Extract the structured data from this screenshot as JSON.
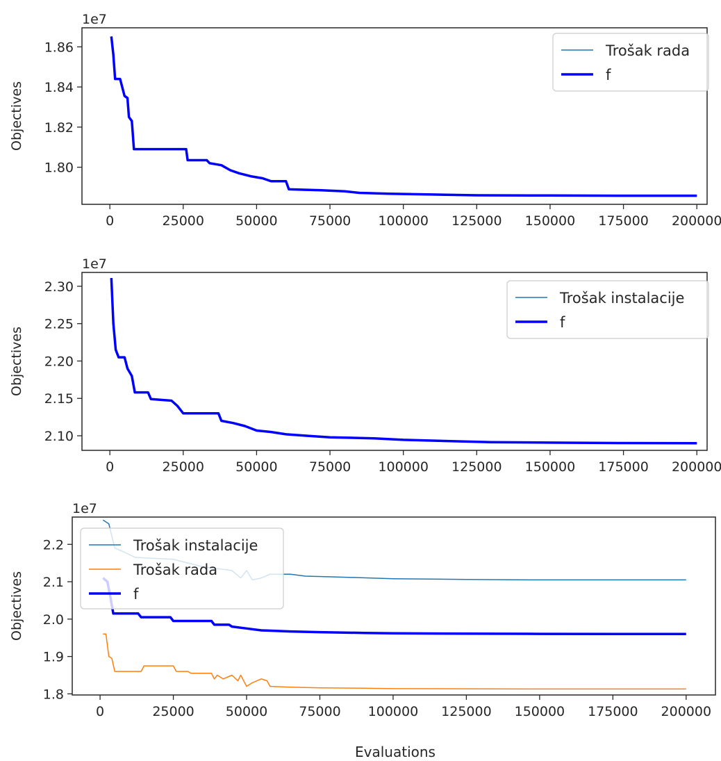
{
  "xlabel": "Evaluations",
  "chart_data": [
    {
      "type": "line",
      "title": "",
      "xlabel": "",
      "ylabel": "Objectives",
      "offset_text": "1e7",
      "xlim": [
        -9500,
        203500
      ],
      "ylim": [
        1.7815,
        1.8695
      ],
      "xticks": [
        0,
        25000,
        50000,
        75000,
        100000,
        125000,
        150000,
        175000,
        200000
      ],
      "yticks": [
        1.8,
        1.82,
        1.84,
        1.86
      ],
      "ytick_labels": [
        "1.80",
        "1.82",
        "1.84",
        "1.86"
      ],
      "legend_position": "upper right",
      "grid": false,
      "series": [
        {
          "name": "Trošak rada",
          "color": "#1f77b4",
          "width": 1.5,
          "points": [
            [
              500,
              1.8652
            ],
            [
              1200,
              1.856
            ],
            [
              1800,
              1.844
            ],
            [
              3500,
              1.844
            ],
            [
              4200,
              1.84
            ],
            [
              5000,
              1.8355
            ],
            [
              6000,
              1.8345
            ],
            [
              6500,
              1.825
            ],
            [
              7500,
              1.823
            ],
            [
              8200,
              1.809
            ],
            [
              26000,
              1.809
            ],
            [
              26500,
              1.8035
            ],
            [
              33000,
              1.8035
            ],
            [
              34000,
              1.802
            ],
            [
              38000,
              1.801
            ],
            [
              41000,
              1.7985
            ],
            [
              44000,
              1.797
            ],
            [
              48000,
              1.7955
            ],
            [
              52000,
              1.7945
            ],
            [
              55000,
              1.793
            ],
            [
              60000,
              1.793
            ],
            [
              61000,
              1.789
            ],
            [
              72000,
              1.7885
            ],
            [
              80000,
              1.788
            ],
            [
              85000,
              1.7872
            ],
            [
              95000,
              1.7868
            ],
            [
              110000,
              1.7864
            ],
            [
              125000,
              1.786
            ],
            [
              150000,
              1.7859
            ],
            [
              175000,
              1.7858
            ],
            [
              200000,
              1.7858
            ]
          ]
        },
        {
          "name": "f",
          "color": "#0000ff",
          "width": 3.5,
          "points": [
            [
              500,
              1.8652
            ],
            [
              1200,
              1.856
            ],
            [
              1800,
              1.844
            ],
            [
              3500,
              1.844
            ],
            [
              4200,
              1.84
            ],
            [
              5000,
              1.8355
            ],
            [
              6000,
              1.8345
            ],
            [
              6500,
              1.825
            ],
            [
              7500,
              1.823
            ],
            [
              8200,
              1.809
            ],
            [
              26000,
              1.809
            ],
            [
              26500,
              1.8035
            ],
            [
              33000,
              1.8035
            ],
            [
              34000,
              1.802
            ],
            [
              38000,
              1.801
            ],
            [
              41000,
              1.7985
            ],
            [
              44000,
              1.797
            ],
            [
              48000,
              1.7955
            ],
            [
              52000,
              1.7945
            ],
            [
              55000,
              1.793
            ],
            [
              60000,
              1.793
            ],
            [
              61000,
              1.789
            ],
            [
              72000,
              1.7885
            ],
            [
              80000,
              1.788
            ],
            [
              85000,
              1.7872
            ],
            [
              95000,
              1.7868
            ],
            [
              110000,
              1.7864
            ],
            [
              125000,
              1.786
            ],
            [
              150000,
              1.7859
            ],
            [
              175000,
              1.7858
            ],
            [
              200000,
              1.7858
            ]
          ]
        }
      ]
    },
    {
      "type": "line",
      "title": "",
      "xlabel": "",
      "ylabel": "Objectives",
      "offset_text": "1e7",
      "xlim": [
        -9500,
        203500
      ],
      "ylim": [
        2.0805,
        2.3185
      ],
      "xticks": [
        0,
        25000,
        50000,
        75000,
        100000,
        125000,
        150000,
        175000,
        200000
      ],
      "yticks": [
        2.1,
        2.15,
        2.2,
        2.25,
        2.3
      ],
      "ytick_labels": [
        "2.10",
        "2.15",
        "2.20",
        "2.25",
        "2.30"
      ],
      "legend_position": "upper right",
      "grid": false,
      "series": [
        {
          "name": "Trošak instalacije",
          "color": "#1f77b4",
          "width": 1.5,
          "points": [
            [
              500,
              2.311
            ],
            [
              1200,
              2.25
            ],
            [
              2000,
              2.215
            ],
            [
              3000,
              2.205
            ],
            [
              5000,
              2.205
            ],
            [
              6000,
              2.19
            ],
            [
              7500,
              2.18
            ],
            [
              8500,
              2.158
            ],
            [
              13000,
              2.158
            ],
            [
              14000,
              2.149
            ],
            [
              21000,
              2.147
            ],
            [
              23000,
              2.14
            ],
            [
              25000,
              2.13
            ],
            [
              37000,
              2.13
            ],
            [
              38000,
              2.12
            ],
            [
              42000,
              2.117
            ],
            [
              46000,
              2.113
            ],
            [
              50000,
              2.107
            ],
            [
              55000,
              2.105
            ],
            [
              60000,
              2.102
            ],
            [
              67000,
              2.1
            ],
            [
              75000,
              2.098
            ],
            [
              90000,
              2.0965
            ],
            [
              100000,
              2.0945
            ],
            [
              115000,
              2.093
            ],
            [
              130000,
              2.0915
            ],
            [
              150000,
              2.0908
            ],
            [
              175000,
              2.0903
            ],
            [
              200000,
              2.09
            ]
          ]
        },
        {
          "name": "f",
          "color": "#0000ff",
          "width": 3.5,
          "points": [
            [
              500,
              2.311
            ],
            [
              1200,
              2.25
            ],
            [
              2000,
              2.215
            ],
            [
              3000,
              2.205
            ],
            [
              5000,
              2.205
            ],
            [
              6000,
              2.19
            ],
            [
              7500,
              2.18
            ],
            [
              8500,
              2.158
            ],
            [
              13000,
              2.158
            ],
            [
              14000,
              2.149
            ],
            [
              21000,
              2.147
            ],
            [
              23000,
              2.14
            ],
            [
              25000,
              2.13
            ],
            [
              37000,
              2.13
            ],
            [
              38000,
              2.12
            ],
            [
              42000,
              2.117
            ],
            [
              46000,
              2.113
            ],
            [
              50000,
              2.107
            ],
            [
              55000,
              2.105
            ],
            [
              60000,
              2.102
            ],
            [
              67000,
              2.1
            ],
            [
              75000,
              2.098
            ],
            [
              90000,
              2.0965
            ],
            [
              100000,
              2.0945
            ],
            [
              115000,
              2.093
            ],
            [
              130000,
              2.0915
            ],
            [
              150000,
              2.0908
            ],
            [
              175000,
              2.0903
            ],
            [
              200000,
              2.09
            ]
          ]
        }
      ]
    },
    {
      "type": "line",
      "title": "",
      "xlabel": "Evaluations",
      "ylabel": "Objectives",
      "offset_text": "1e7",
      "xlim": [
        -9500,
        210000
      ],
      "ylim": [
        1.797,
        2.273
      ],
      "xticks": [
        0,
        25000,
        50000,
        75000,
        100000,
        125000,
        150000,
        175000,
        200000
      ],
      "yticks": [
        1.8,
        1.9,
        2.0,
        2.1,
        2.2
      ],
      "ytick_labels": [
        "1.8",
        "1.9",
        "2.0",
        "2.1",
        "2.2"
      ],
      "legend_position": "upper left",
      "grid": false,
      "series": [
        {
          "name": "Trošak instalacije",
          "color": "#1f77b4",
          "width": 1.5,
          "points": [
            [
              1000,
              2.265
            ],
            [
              3000,
              2.255
            ],
            [
              5000,
              2.19
            ],
            [
              8000,
              2.18
            ],
            [
              12000,
              2.165
            ],
            [
              25000,
              2.16
            ],
            [
              35000,
              2.14
            ],
            [
              45000,
              2.13
            ],
            [
              48000,
              2.11
            ],
            [
              50000,
              2.13
            ],
            [
              52000,
              2.105
            ],
            [
              55000,
              2.11
            ],
            [
              58000,
              2.12
            ],
            [
              65000,
              2.12
            ],
            [
              70000,
              2.115
            ],
            [
              80000,
              2.113
            ],
            [
              100000,
              2.108
            ],
            [
              125000,
              2.106
            ],
            [
              150000,
              2.105
            ],
            [
              175000,
              2.105
            ],
            [
              200000,
              2.105
            ]
          ]
        },
        {
          "name": "Trošak rada",
          "color": "#ff7f0e",
          "width": 1.5,
          "points": [
            [
              1000,
              1.96
            ],
            [
              2000,
              1.96
            ],
            [
              2500,
              1.93
            ],
            [
              3000,
              1.9
            ],
            [
              4000,
              1.895
            ],
            [
              5000,
              1.86
            ],
            [
              14000,
              1.86
            ],
            [
              15000,
              1.875
            ],
            [
              25000,
              1.875
            ],
            [
              26000,
              1.86
            ],
            [
              30000,
              1.86
            ],
            [
              31000,
              1.855
            ],
            [
              38000,
              1.855
            ],
            [
              39000,
              1.84
            ],
            [
              40000,
              1.85
            ],
            [
              42000,
              1.84
            ],
            [
              45000,
              1.85
            ],
            [
              47000,
              1.835
            ],
            [
              48000,
              1.85
            ],
            [
              50000,
              1.82
            ],
            [
              52000,
              1.83
            ],
            [
              55000,
              1.84
            ],
            [
              57000,
              1.835
            ],
            [
              58000,
              1.82
            ],
            [
              65000,
              1.818
            ],
            [
              75000,
              1.816
            ],
            [
              90000,
              1.815
            ],
            [
              100000,
              1.814
            ],
            [
              125000,
              1.8135
            ],
            [
              150000,
              1.813
            ],
            [
              200000,
              1.813
            ]
          ]
        },
        {
          "name": "f",
          "color": "#0000ff",
          "width": 3.5,
          "points": [
            [
              1000,
              2.11
            ],
            [
              2500,
              2.1
            ],
            [
              3500,
              2.06
            ],
            [
              4500,
              2.015
            ],
            [
              13000,
              2.015
            ],
            [
              14000,
              2.005
            ],
            [
              24000,
              2.005
            ],
            [
              25000,
              1.995
            ],
            [
              38000,
              1.995
            ],
            [
              39000,
              1.985
            ],
            [
              44000,
              1.985
            ],
            [
              45000,
              1.98
            ],
            [
              50000,
              1.975
            ],
            [
              55000,
              1.97
            ],
            [
              65000,
              1.967
            ],
            [
              75000,
              1.965
            ],
            [
              90000,
              1.963
            ],
            [
              100000,
              1.962
            ],
            [
              125000,
              1.961
            ],
            [
              150000,
              1.9605
            ],
            [
              200000,
              1.96
            ]
          ]
        }
      ]
    }
  ]
}
